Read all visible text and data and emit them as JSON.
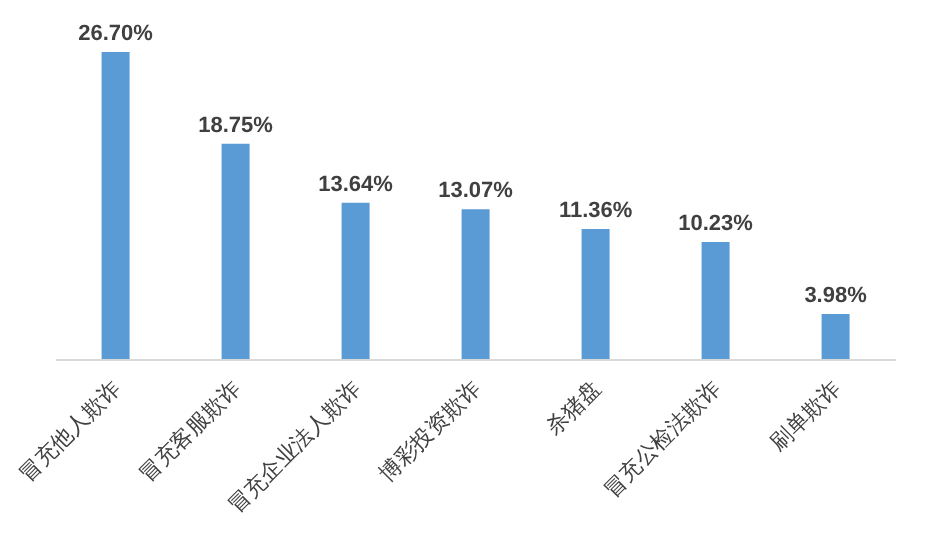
{
  "chart_data": {
    "type": "bar",
    "categories": [
      "冒充他人欺诈",
      "冒充客服欺诈",
      "冒充企业法人欺诈",
      "博彩投资欺诈",
      "杀猪盘",
      "冒充公检法欺诈",
      "刷单欺诈"
    ],
    "values": [
      26.7,
      18.75,
      13.64,
      13.07,
      11.36,
      10.23,
      3.98
    ],
    "value_labels": [
      "26.70%",
      "18.75%",
      "13.64%",
      "13.07%",
      "11.36%",
      "10.23%",
      "3.98%"
    ],
    "color": "#5b9bd5",
    "grid": false,
    "legend": false
  }
}
